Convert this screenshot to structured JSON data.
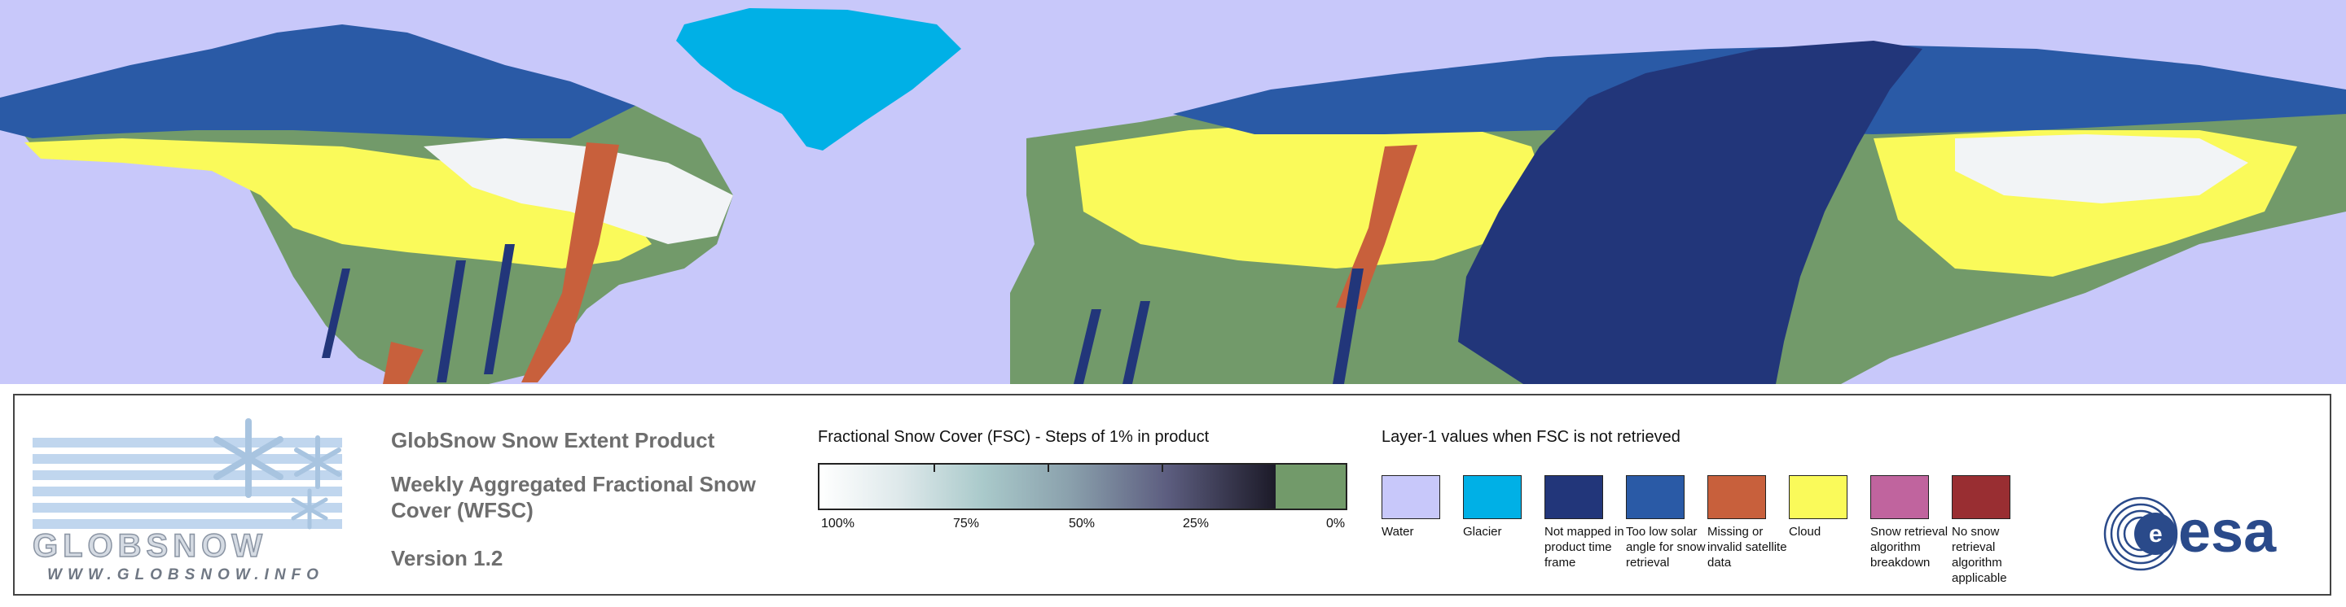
{
  "map": {
    "colors": {
      "water": "#c8c8fa",
      "glacier": "#00b0e6",
      "not_mapped": "#22367a",
      "low_solar": "#2a5aa6",
      "missing": "#c8603c",
      "cloud": "#fafa5a",
      "snow_free": "#729a6a",
      "snow": "#f2f4f6"
    }
  },
  "logo": {
    "name": "GLOBSNOW",
    "url": "WWW.GLOBSNOW.INFO"
  },
  "titles": {
    "product": "GlobSnow Snow Extent Product",
    "subtitle": "Weekly Aggregated Fractional Snow Cover (WFSC)",
    "version": "Version 1.2"
  },
  "fsc_legend": {
    "title": "Fractional Snow Cover (FSC) - Steps of 1% in product",
    "ticks": [
      "100%",
      "75%",
      "50%",
      "25%",
      "0%"
    ],
    "ramp_colors": [
      "#ffffff",
      "#a9c9ca",
      "#5d5e80",
      "#1c1a28"
    ],
    "snow_free_color": "#729a6a"
  },
  "layer1_legend": {
    "title": "Layer-1 values when FSC is not retrieved",
    "items": [
      {
        "label": "Water",
        "color": "#c8c8fa"
      },
      {
        "label": "Glacier",
        "color": "#00b0e6"
      },
      {
        "label": "Not mapped in product time frame",
        "color": "#22367a"
      },
      {
        "label": "Too low solar angle for snow retrieval",
        "color": "#2a5aa6"
      },
      {
        "label": "Missing or invalid satellite data",
        "color": "#c8603c"
      },
      {
        "label": "Cloud",
        "color": "#fafa5a"
      },
      {
        "label": "Snow retrieval algorithm breakdown",
        "color": "#c0649e"
      },
      {
        "label": "No snow retrieval algorithm applicable",
        "color": "#992e32"
      }
    ]
  },
  "esa_logo": {
    "text": "esa",
    "color": "#2a4a8a"
  }
}
